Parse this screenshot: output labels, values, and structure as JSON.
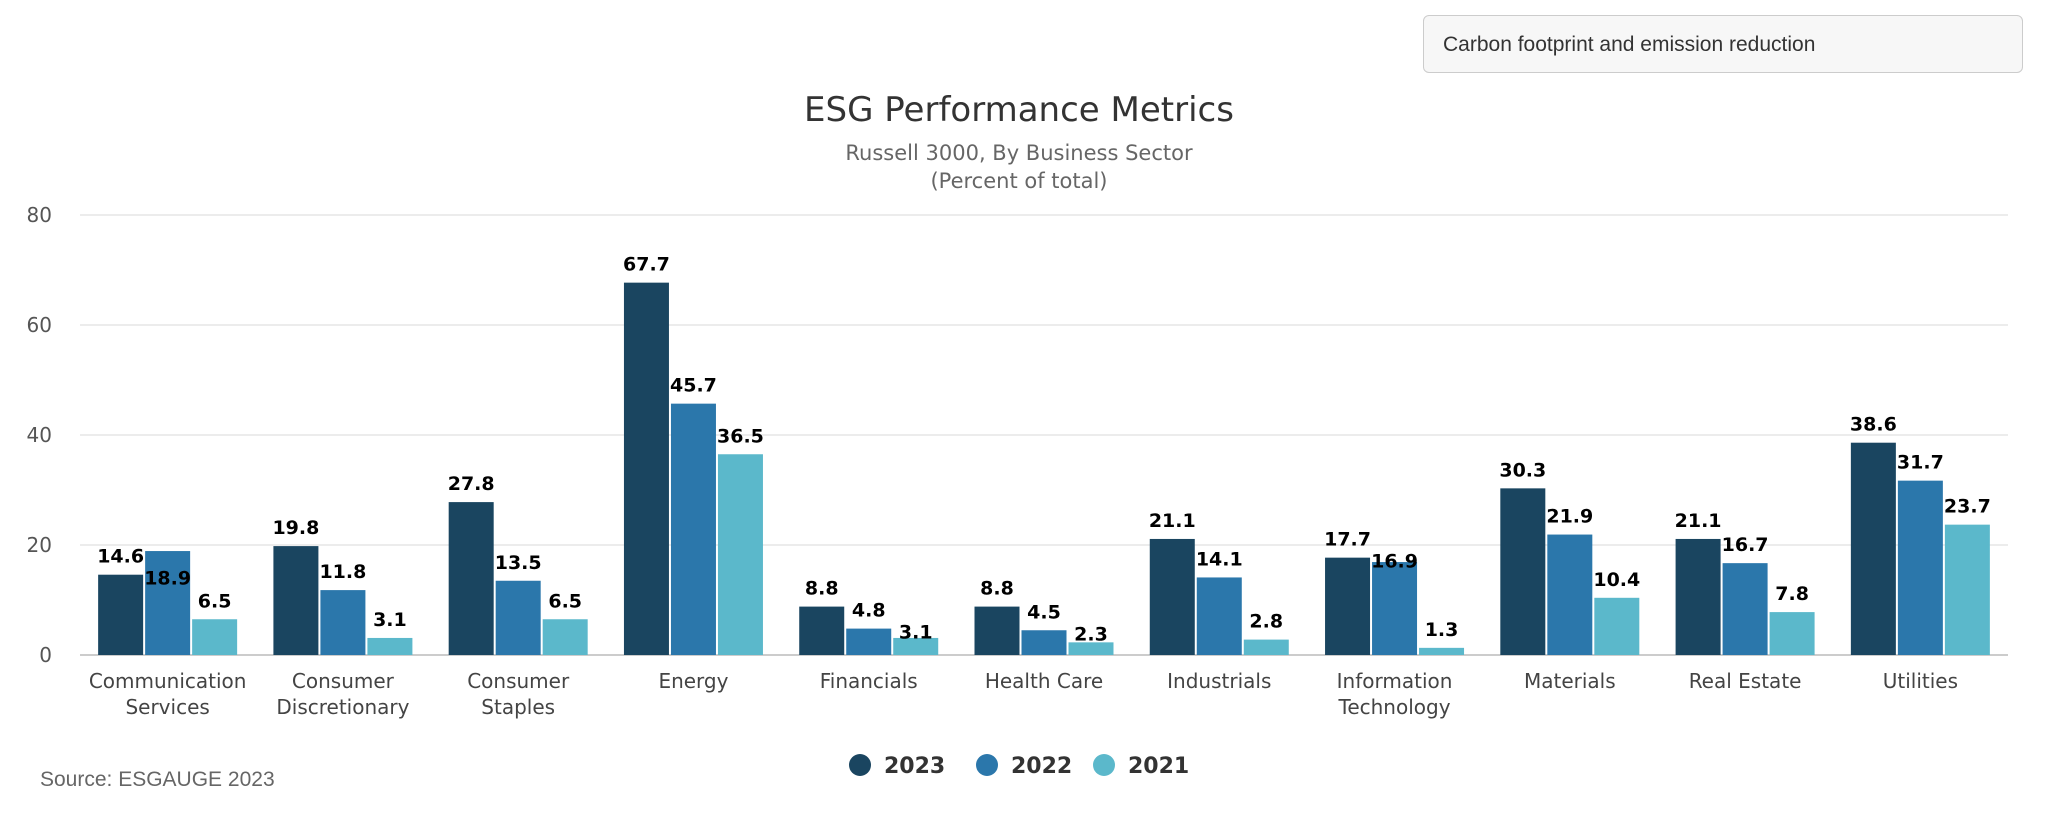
{
  "selector": {
    "value": "Carbon footprint and emission reduction"
  },
  "source": "Source: ESGAUGE 2023",
  "colors": {
    "2023": "#1a4560",
    "2022": "#2b77ab",
    "2021": "#5bb8cb",
    "grid": "#e6e6e6",
    "axis": "#cccccc"
  },
  "chart_data": {
    "type": "bar",
    "title": "ESG Performance Metrics",
    "subtitle": [
      "Russell 3000, By Business Sector",
      "(Percent of total)"
    ],
    "categories": [
      [
        "Communication",
        "Services"
      ],
      [
        "Consumer",
        "Discretionary"
      ],
      [
        "Consumer",
        "Staples"
      ],
      [
        "Energy"
      ],
      [
        "Financials"
      ],
      [
        "Health Care"
      ],
      [
        "Industrials"
      ],
      [
        "Information",
        "Technology"
      ],
      [
        "Materials"
      ],
      [
        "Real Estate"
      ],
      [
        "Utilities"
      ]
    ],
    "series": [
      {
        "name": "2023",
        "values": [
          14.6,
          19.8,
          27.8,
          67.7,
          8.8,
          8.8,
          21.1,
          17.7,
          30.3,
          21.1,
          38.6
        ]
      },
      {
        "name": "2022",
        "values": [
          18.9,
          11.8,
          13.5,
          45.7,
          4.8,
          4.5,
          14.1,
          16.9,
          21.9,
          16.7,
          31.7
        ]
      },
      {
        "name": "2021",
        "values": [
          6.5,
          3.1,
          6.5,
          36.5,
          3.1,
          2.3,
          2.8,
          1.3,
          10.4,
          7.8,
          23.7
        ]
      }
    ],
    "ylim": [
      0,
      80
    ],
    "yticks": [
      0,
      20,
      40,
      60,
      80
    ],
    "grid": true,
    "legend": "bottom-center"
  }
}
